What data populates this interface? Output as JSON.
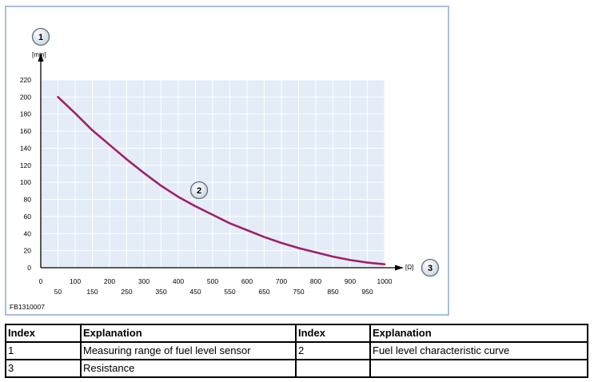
{
  "figure_id": "FB1310007",
  "chart_data": {
    "type": "line",
    "ylabel": "[mm]",
    "xlabel": "[Ω]",
    "xlim": [
      0,
      1000
    ],
    "ylim": [
      0,
      220
    ],
    "grid": true,
    "x_ticks_upper": [
      "0",
      "100",
      "200",
      "300",
      "400",
      "500",
      "600",
      "700",
      "800",
      "900",
      "1000"
    ],
    "x_ticks_lower": [
      "50",
      "150",
      "250",
      "350",
      "450",
      "550",
      "650",
      "750",
      "850",
      "950"
    ],
    "y_ticks": [
      "0",
      "20",
      "40",
      "60",
      "80",
      "100",
      "120",
      "140",
      "160",
      "180",
      "200",
      "220"
    ],
    "series": [
      {
        "color": "#a0206a",
        "x": [
          50,
          100,
          150,
          200,
          250,
          300,
          350,
          400,
          450,
          500,
          550,
          600,
          650,
          700,
          750,
          800,
          850,
          900,
          950,
          1000
        ],
        "y": [
          200,
          181,
          161,
          144,
          127,
          111,
          96,
          83,
          72,
          62,
          52,
          44,
          36,
          29,
          23,
          18,
          13,
          9,
          6,
          4
        ]
      }
    ],
    "callouts": [
      {
        "label": "1",
        "target": "y-axis"
      },
      {
        "label": "2",
        "target": "curve"
      },
      {
        "label": "3",
        "target": "x-axis"
      }
    ]
  },
  "table": {
    "headers": [
      "Index",
      "Explanation",
      "Index",
      "Explanation"
    ],
    "rows": [
      [
        "1",
        "Measuring range of fuel level sensor",
        "2",
        "Fuel level characteristic curve"
      ],
      [
        "3",
        "Resistance",
        "",
        ""
      ]
    ]
  }
}
